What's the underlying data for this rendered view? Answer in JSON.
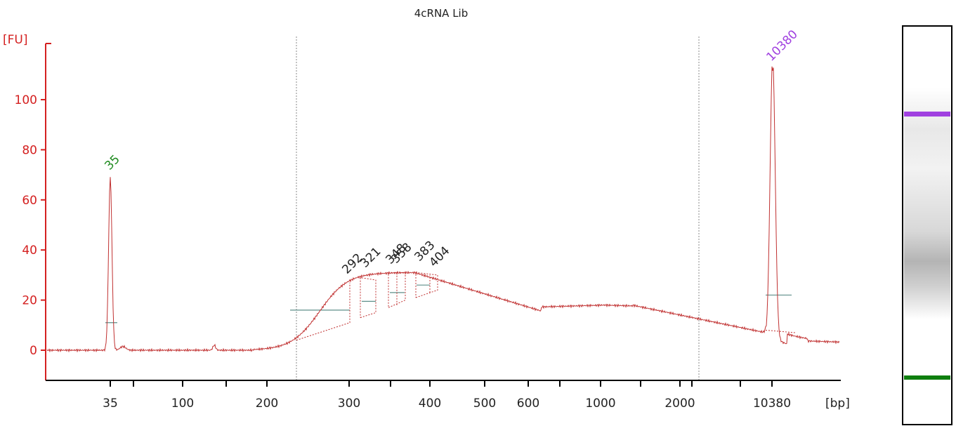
{
  "chart_data": {
    "type": "line",
    "title": "4cRNA Lib",
    "y_unit": "[FU]",
    "x_unit": "[bp]",
    "ylim": [
      -11,
      122
    ],
    "y_ticks": [
      0,
      20,
      40,
      60,
      80,
      100
    ],
    "x_tick_labels": [
      "35",
      "100",
      "200",
      "300",
      "400",
      "500",
      "600",
      "1000",
      "2000",
      "10380"
    ],
    "grid": false,
    "colors": {
      "axis": "#d42020",
      "trace": "#c03030",
      "lower_marker": "#1e8a1e",
      "upper_marker": "#a040e0",
      "peak_label": "#222222",
      "region_line": "#5e8f8a"
    },
    "marker_peaks": [
      {
        "label": "35",
        "color": "lower",
        "height": 69
      },
      {
        "label": "10380",
        "color": "upper",
        "height": 112
      }
    ],
    "sample_peak_labels": [
      "292",
      "321",
      "348",
      "358",
      "383",
      "404"
    ],
    "smear": {
      "start_bp": 230,
      "max_fu": 31,
      "end_bp": 3000
    },
    "gel_lane": {
      "upper_marker": "10380",
      "lower_marker": "35"
    }
  }
}
